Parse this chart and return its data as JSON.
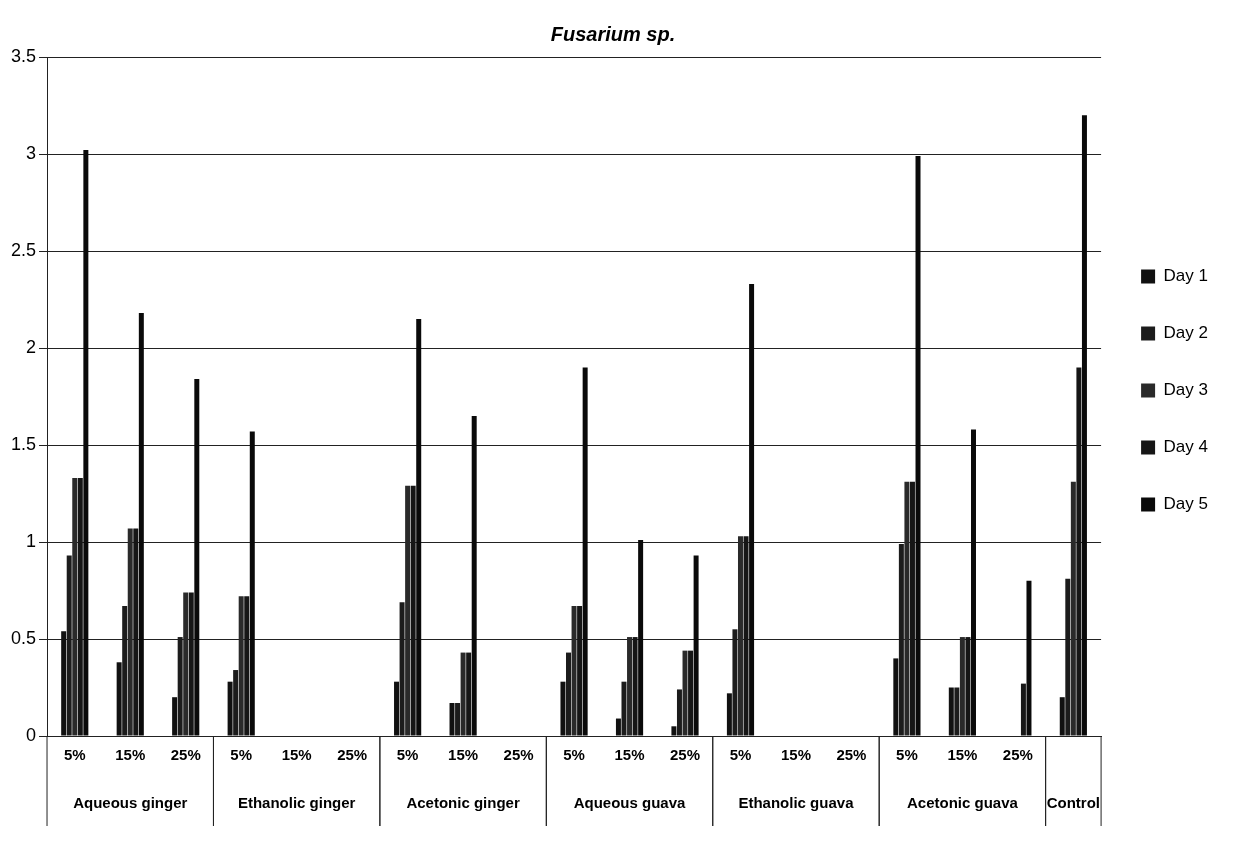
{
  "chart_data": {
    "type": "bar",
    "title": "Fusarium sp.",
    "categories": [
      "5%",
      "15%",
      "25%",
      "5%",
      "15%",
      "25%",
      "5%",
      "15%",
      "25%",
      "5%",
      "15%",
      "25%",
      "5%",
      "15%",
      "25%",
      "5%",
      "15%",
      "25%",
      null
    ],
    "series": [
      {
        "name": "Day 1",
        "color": "#111111",
        "values": [
          0.54,
          0.38,
          0.2,
          0.28,
          null,
          null,
          0.28,
          0.17,
          null,
          0.28,
          0.09,
          0.05,
          0.22,
          null,
          null,
          0.4,
          0.25,
          null,
          0.2
        ]
      },
      {
        "name": "Day 2",
        "color": "#1c1c1c",
        "values": [
          0.93,
          0.67,
          0.51,
          0.34,
          null,
          null,
          0.69,
          0.17,
          null,
          0.43,
          0.28,
          0.24,
          0.55,
          null,
          null,
          0.99,
          0.25,
          null,
          0.81
        ]
      },
      {
        "name": "Day 3",
        "color": "#2a2a2a",
        "values": [
          1.33,
          1.07,
          0.74,
          0.72,
          null,
          null,
          1.29,
          0.43,
          null,
          0.67,
          0.51,
          0.44,
          1.03,
          null,
          null,
          1.31,
          0.51,
          null,
          1.31
        ]
      },
      {
        "name": "Day 4",
        "color": "#161616",
        "values": [
          1.33,
          1.07,
          0.74,
          0.72,
          null,
          null,
          1.29,
          0.43,
          null,
          0.67,
          0.51,
          0.44,
          1.03,
          null,
          null,
          1.31,
          0.51,
          0.27,
          1.9
        ]
      },
      {
        "name": "Day 5",
        "color": "#0a0a0a",
        "values": [
          3.02,
          2.18,
          1.84,
          1.57,
          null,
          null,
          2.15,
          1.65,
          null,
          1.9,
          1.01,
          0.93,
          2.33,
          null,
          null,
          2.99,
          1.58,
          0.8,
          3.2
        ]
      }
    ],
    "annotations": [
      "Aqueous ginger",
      "Ethanolic ginger",
      "Acetonic ginger",
      "Aqueous guava",
      "Ethanolic guava",
      "Acetonic guava",
      "Control"
    ],
    "ylim": [
      0,
      3.5
    ],
    "yticks": [
      0,
      0.5,
      1,
      1.5,
      2,
      2.5,
      3,
      3.5
    ],
    "grid": "y",
    "legend": "right"
  }
}
